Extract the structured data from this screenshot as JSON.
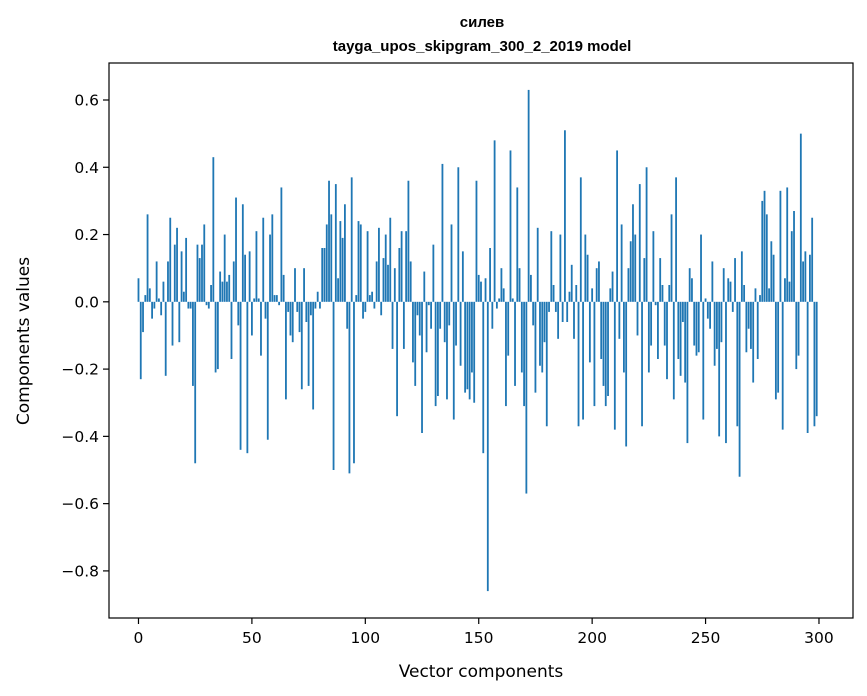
{
  "chart_data": {
    "type": "bar",
    "title": "силев",
    "subtitle": "tayga_upos_skipgram_300_2_2019 model",
    "xlabel": "Vector components",
    "ylabel": "Components values",
    "xlim": [
      -13,
      315
    ],
    "ylim": [
      -0.94,
      0.71
    ],
    "xticks": [
      0,
      50,
      100,
      150,
      200,
      250,
      300
    ],
    "xtick_labels": [
      "0",
      "50",
      "100",
      "150",
      "200",
      "250",
      "300"
    ],
    "yticks": [
      -0.8,
      -0.6,
      -0.4,
      -0.2,
      0.0,
      0.2,
      0.4,
      0.6
    ],
    "ytick_labels": [
      "−0.8",
      "−0.6",
      "−0.4",
      "−0.2",
      "0.0",
      "0.2",
      "0.4",
      "0.6"
    ],
    "bar_color": "#1f77b4",
    "x": [
      0,
      1,
      2,
      3,
      4,
      5,
      6,
      7,
      8,
      9,
      10,
      11,
      12,
      13,
      14,
      15,
      16,
      17,
      18,
      19,
      20,
      21,
      22,
      23,
      24,
      25,
      26,
      27,
      28,
      29,
      30,
      31,
      32,
      33,
      34,
      35,
      36,
      37,
      38,
      39,
      40,
      41,
      42,
      43,
      44,
      45,
      46,
      47,
      48,
      49,
      50,
      51,
      52,
      53,
      54,
      55,
      56,
      57,
      58,
      59,
      60,
      61,
      62,
      63,
      64,
      65,
      66,
      67,
      68,
      69,
      70,
      71,
      72,
      73,
      74,
      75,
      76,
      77,
      78,
      79,
      80,
      81,
      82,
      83,
      84,
      85,
      86,
      87,
      88,
      89,
      90,
      91,
      92,
      93,
      94,
      95,
      96,
      97,
      98,
      99,
      100,
      101,
      102,
      103,
      104,
      105,
      106,
      107,
      108,
      109,
      110,
      111,
      112,
      113,
      114,
      115,
      116,
      117,
      118,
      119,
      120,
      121,
      122,
      123,
      124,
      125,
      126,
      127,
      128,
      129,
      130,
      131,
      132,
      133,
      134,
      135,
      136,
      137,
      138,
      139,
      140,
      141,
      142,
      143,
      144,
      145,
      146,
      147,
      148,
      149,
      150,
      151,
      152,
      153,
      154,
      155,
      156,
      157,
      158,
      159,
      160,
      161,
      162,
      163,
      164,
      165,
      166,
      167,
      168,
      169,
      170,
      171,
      172,
      173,
      174,
      175,
      176,
      177,
      178,
      179,
      180,
      181,
      182,
      183,
      184,
      185,
      186,
      187,
      188,
      189,
      190,
      191,
      192,
      193,
      194,
      195,
      196,
      197,
      198,
      199,
      200,
      201,
      202,
      203,
      204,
      205,
      206,
      207,
      208,
      209,
      210,
      211,
      212,
      213,
      214,
      215,
      216,
      217,
      218,
      219,
      220,
      221,
      222,
      223,
      224,
      225,
      226,
      227,
      228,
      229,
      230,
      231,
      232,
      233,
      234,
      235,
      236,
      237,
      238,
      239,
      240,
      241,
      242,
      243,
      244,
      245,
      246,
      247,
      248,
      249,
      250,
      251,
      252,
      253,
      254,
      255,
      256,
      257,
      258,
      259,
      260,
      261,
      262,
      263,
      264,
      265,
      266,
      267,
      268,
      269,
      270,
      271,
      272,
      273,
      274,
      275,
      276,
      277,
      278,
      279,
      280,
      281,
      282,
      283,
      284,
      285,
      286,
      287,
      288,
      289,
      290,
      291,
      292,
      293,
      294,
      295,
      296,
      297,
      298,
      299
    ],
    "values": [
      0.07,
      -0.23,
      -0.09,
      0.02,
      0.26,
      0.04,
      -0.05,
      -0.02,
      0.12,
      0.01,
      -0.04,
      0.06,
      -0.22,
      0.12,
      0.25,
      -0.13,
      0.17,
      0.22,
      -0.12,
      0.15,
      0.03,
      0.19,
      -0.02,
      -0.02,
      -0.25,
      -0.48,
      0.17,
      0.13,
      0.17,
      0.23,
      -0.01,
      -0.02,
      0.05,
      0.43,
      -0.21,
      -0.2,
      0.09,
      0.06,
      0.2,
      0.06,
      0.08,
      -0.17,
      0.12,
      0.31,
      -0.07,
      -0.44,
      0.29,
      0.14,
      -0.45,
      0.15,
      -0.1,
      0.01,
      0.21,
      0.01,
      -0.16,
      0.25,
      -0.05,
      -0.41,
      0.2,
      0.26,
      0.02,
      0.02,
      -0.01,
      0.34,
      0.08,
      -0.29,
      -0.03,
      -0.1,
      -0.12,
      0.1,
      -0.03,
      -0.09,
      -0.26,
      0.1,
      -0.06,
      -0.25,
      -0.04,
      -0.32,
      -0.02,
      0.03,
      -0.02,
      0.16,
      0.16,
      0.23,
      0.36,
      0.26,
      -0.5,
      0.35,
      0.07,
      0.24,
      0.19,
      0.29,
      -0.08,
      -0.51,
      0.37,
      -0.48,
      0.02,
      0.24,
      0.23,
      -0.05,
      -0.03,
      0.21,
      0.02,
      0.03,
      -0.02,
      0.12,
      0.22,
      -0.04,
      0.13,
      0.2,
      0.11,
      0.25,
      -0.14,
      0.1,
      -0.34,
      0.16,
      0.21,
      -0.14,
      0.21,
      0.36,
      0.12,
      -0.18,
      -0.25,
      -0.04,
      -0.1,
      -0.39,
      0.09,
      -0.15,
      -0.01,
      -0.08,
      0.17,
      -0.31,
      -0.28,
      -0.08,
      0.41,
      -0.12,
      -0.29,
      -0.07,
      0.23,
      -0.35,
      -0.13,
      0.4,
      -0.19,
      0.15,
      -0.27,
      -0.26,
      -0.29,
      -0.21,
      -0.3,
      0.36,
      0.08,
      0.06,
      -0.45,
      0.07,
      -0.86,
      0.16,
      -0.08,
      0.48,
      -0.02,
      0.01,
      0.1,
      0.04,
      -0.31,
      -0.16,
      0.45,
      0.01,
      -0.25,
      0.34,
      0.1,
      -0.21,
      -0.31,
      -0.57,
      0.63,
      0.08,
      -0.07,
      -0.27,
      0.22,
      -0.19,
      -0.21,
      -0.12,
      -0.37,
      -0.03,
      0.21,
      0.05,
      -0.03,
      -0.11,
      0.2,
      -0.06,
      0.51,
      -0.06,
      0.03,
      0.11,
      -0.11,
      0.05,
      -0.37,
      0.37,
      -0.35,
      0.2,
      0.14,
      -0.18,
      0.04,
      -0.31,
      0.1,
      0.12,
      -0.17,
      -0.25,
      -0.31,
      -0.28,
      0.04,
      0.09,
      -0.38,
      0.45,
      -0.11,
      0.23,
      -0.21,
      -0.43,
      0.1,
      0.18,
      0.29,
      0.2,
      -0.1,
      0.35,
      -0.37,
      0.13,
      0.4,
      -0.21,
      -0.13,
      0.21,
      -0.01,
      -0.17,
      0.13,
      0.05,
      -0.13,
      -0.23,
      0.05,
      0.26,
      -0.29,
      0.37,
      -0.17,
      -0.22,
      -0.06,
      -0.24,
      -0.42,
      0.1,
      0.07,
      -0.13,
      -0.16,
      -0.15,
      0.2,
      -0.35,
      0.01,
      -0.05,
      -0.08,
      0.12,
      -0.19,
      -0.14,
      -0.4,
      -0.12,
      0.1,
      -0.42,
      0.07,
      0.06,
      -0.03,
      0.13,
      -0.37,
      -0.52,
      0.15,
      0.05,
      -0.15,
      -0.08,
      -0.14,
      -0.24,
      0.04,
      -0.17,
      0.02,
      0.3,
      0.33,
      0.26,
      0.04,
      0.18,
      0.14,
      -0.29,
      -0.27,
      0.33,
      -0.38,
      0.07,
      0.34,
      0.06,
      0.21,
      0.27,
      -0.2,
      -0.16,
      0.5,
      0.12,
      0.15,
      -0.39,
      0.14,
      0.25,
      -0.37,
      -0.34
    ]
  }
}
